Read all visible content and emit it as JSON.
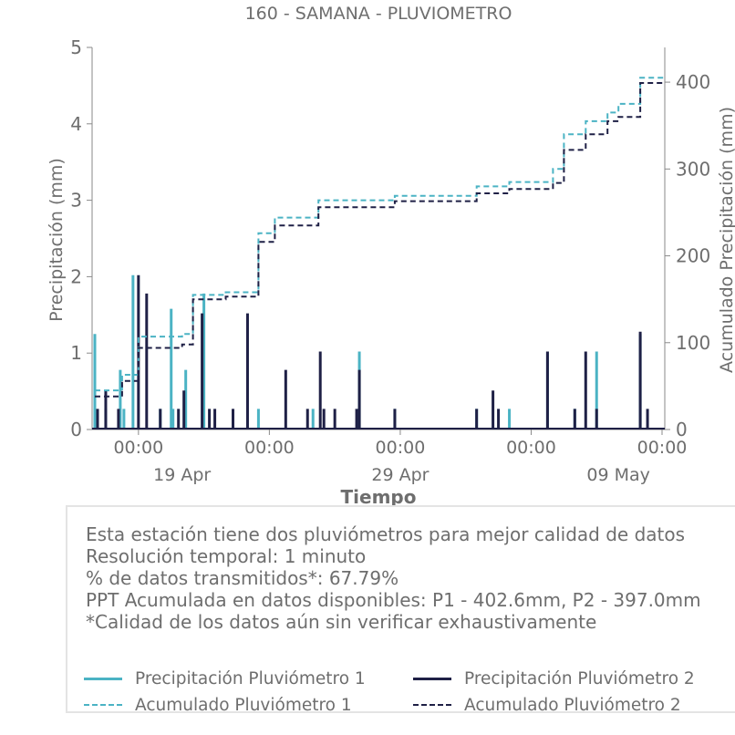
{
  "chart_data": {
    "type": "line",
    "title": "160 - SAMANA - PLUVIOMETRO",
    "xlabel": "Tiempo",
    "ylabel": "Precipitación (mm)",
    "y2label": "Acumulado Precipitación (mm)",
    "xlim": [
      "2024-04-14T21:00",
      "2024-05-11T03:00"
    ],
    "ylim": [
      0,
      5
    ],
    "y2lim": [
      0,
      440
    ],
    "yticks": [
      0,
      1,
      2,
      3,
      4,
      5
    ],
    "y2ticks": [
      0,
      100,
      200,
      300,
      400
    ],
    "xticks_minor": [
      {
        "x": "2024-04-17T00:00",
        "label": "00:00"
      },
      {
        "x": "2024-04-23T00:00",
        "label": "00:00"
      },
      {
        "x": "2024-04-29T00:00",
        "label": "00:00"
      },
      {
        "x": "2024-05-05T00:00",
        "label": "00:00"
      },
      {
        "x": "2024-05-11T00:00",
        "label": "00:00"
      }
    ],
    "xticks_major": [
      {
        "x": "2024-04-19T00:00",
        "label": "19 Apr"
      },
      {
        "x": "2024-04-29T00:00",
        "label": "29 Apr"
      },
      {
        "x": "2024-05-09T00:00",
        "label": "09 May"
      }
    ],
    "grid": false,
    "legend_position": "bottom",
    "series": [
      {
        "name": "Precipitación Pluviómetro 1",
        "axis": "left",
        "style": "solid",
        "color": "#4bb3c4",
        "x": [
          "2024-04-15T00:00",
          "2024-04-15T12:00",
          "2024-04-16T04:00",
          "2024-04-16T08:00",
          "2024-04-16T18:00",
          "2024-04-18T00:00",
          "2024-04-18T12:00",
          "2024-04-18T14:00",
          "2024-04-19T04:00",
          "2024-04-20T00:00",
          "2024-04-22T12:00",
          "2024-04-25T00:00",
          "2024-04-27T03:00",
          "2024-04-28T18:00",
          "2024-05-02T12:00",
          "2024-05-04T00:00",
          "2024-05-05T18:00",
          "2024-05-07T00:00",
          "2024-05-08T00:00",
          "2024-05-10T00:00"
        ],
        "y": [
          1.25,
          0.27,
          0.78,
          0.27,
          2.02,
          0.27,
          1.58,
          0.27,
          0.78,
          1.78,
          0.27,
          0.27,
          1.02,
          0.27,
          0.27,
          0.27,
          1.02,
          0.27,
          1.02,
          1.25
        ]
      },
      {
        "name": "Precipitación Pluviómetro 2",
        "axis": "left",
        "style": "solid",
        "color": "#1f2046",
        "x": [
          "2024-04-15T03:00",
          "2024-04-15T12:00",
          "2024-04-16T02:00",
          "2024-04-17T00:00",
          "2024-04-17T09:00",
          "2024-04-18T00:00",
          "2024-04-18T20:00",
          "2024-04-19T02:00",
          "2024-04-19T22:00",
          "2024-04-20T06:00",
          "2024-04-20T12:00",
          "2024-04-21T08:00",
          "2024-04-22T00:00",
          "2024-04-23T18:00",
          "2024-04-24T18:00",
          "2024-04-25T08:00",
          "2024-04-25T12:00",
          "2024-04-26T00:00",
          "2024-04-27T00:00",
          "2024-04-27T03:00",
          "2024-04-28T18:00",
          "2024-05-02T12:00",
          "2024-05-03T06:00",
          "2024-05-03T12:00",
          "2024-05-05T18:00",
          "2024-05-07T00:00",
          "2024-05-07T12:00",
          "2024-05-08T00:00",
          "2024-05-10T00:00",
          "2024-05-10T08:00"
        ],
        "y": [
          0.27,
          0.51,
          0.27,
          2.02,
          1.78,
          0.27,
          0.27,
          0.51,
          1.52,
          0.27,
          0.27,
          0.27,
          1.52,
          0.78,
          0.27,
          1.02,
          0.27,
          0.27,
          0.27,
          0.78,
          0.27,
          0.27,
          0.51,
          0.27,
          1.02,
          0.27,
          1.02,
          0.27,
          1.28,
          0.27
        ]
      },
      {
        "name": "Acumulado Pluviómetro 1",
        "axis": "right",
        "style": "dashed",
        "color": "#4bb3c4",
        "x": [
          "2024-04-15T00:00",
          "2024-04-16T06:00",
          "2024-04-17T00:00",
          "2024-04-19T00:00",
          "2024-04-19T12:00",
          "2024-04-21T00:00",
          "2024-04-22T12:00",
          "2024-04-23T06:00",
          "2024-04-25T06:00",
          "2024-04-28T18:00",
          "2024-05-02T12:00",
          "2024-05-04T00:00",
          "2024-05-06T00:00",
          "2024-05-06T12:00",
          "2024-05-07T12:00",
          "2024-05-08T12:00",
          "2024-05-09T00:00",
          "2024-05-10T00:00",
          "2024-05-11T03:00"
        ],
        "y": [
          45,
          63,
          107,
          110,
          155,
          158,
          226,
          244,
          264,
          269,
          280,
          285,
          300,
          340,
          355,
          365,
          375,
          405,
          405
        ]
      },
      {
        "name": "Acumulado Pluviómetro 2",
        "axis": "right",
        "style": "dashed",
        "color": "#1f2046",
        "x": [
          "2024-04-15T00:00",
          "2024-04-16T06:00",
          "2024-04-17T00:00",
          "2024-04-19T00:00",
          "2024-04-19T12:00",
          "2024-04-21T00:00",
          "2024-04-22T12:00",
          "2024-04-23T06:00",
          "2024-04-25T06:00",
          "2024-04-28T18:00",
          "2024-05-02T12:00",
          "2024-05-04T00:00",
          "2024-05-06T00:00",
          "2024-05-06T12:00",
          "2024-05-07T12:00",
          "2024-05-08T12:00",
          "2024-05-09T00:00",
          "2024-05-10T00:00",
          "2024-05-11T03:00"
        ],
        "y": [
          38,
          56,
          94,
          98,
          150,
          153,
          216,
          235,
          256,
          263,
          272,
          277,
          284,
          322,
          340,
          355,
          360,
          399,
          399
        ]
      }
    ]
  },
  "info": {
    "lines": [
      "Esta estación tiene dos pluviómetros para mejor calidad de datos",
      "Resolución temporal: 1 minuto",
      "% de datos transmitidos*: 67.79%",
      "PPT Acumulada en datos disponibles: P1 - 402.6mm, P2 - 397.0mm",
      "*Calidad de los datos aún sin verificar exhaustivamente"
    ]
  },
  "legend": {
    "items": [
      {
        "label": "Precipitación Pluviómetro 1",
        "color": "#4bb3c4",
        "style": "solid"
      },
      {
        "label": "Precipitación Pluviómetro 2",
        "color": "#1f2046",
        "style": "solid"
      },
      {
        "label": "Acumulado Pluviómetro 1",
        "color": "#4bb3c4",
        "style": "dashed"
      },
      {
        "label": "Acumulado Pluviómetro 2",
        "color": "#1f2046",
        "style": "dashed"
      }
    ]
  }
}
